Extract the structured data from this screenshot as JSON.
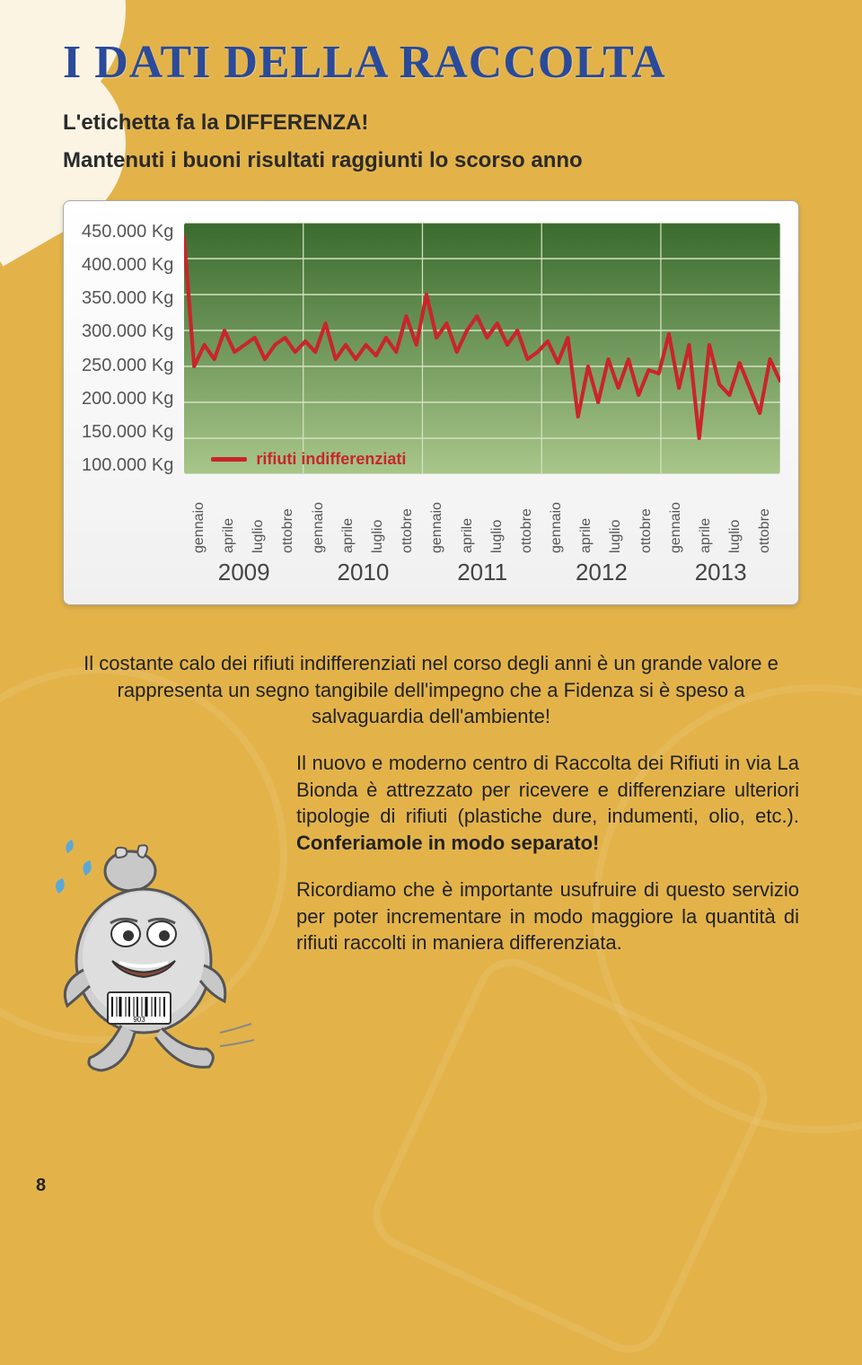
{
  "page": {
    "title": "I DATI DELLA RACCOLTA",
    "subtitle1": "L'etichetta fa la DIFFERENZA!",
    "subtitle2": "Mantenuti i buoni risultati raggiunti lo scorso anno",
    "page_number": "8"
  },
  "chart": {
    "type": "line",
    "background_gradient_top": "#3a6b2e",
    "background_gradient_bottom": "#a8c68a",
    "grid_color": "#d4e2c0",
    "line_color": "#c9252b",
    "line_width": 4,
    "legend_label": "rifiuti indifferenziati",
    "legend_color": "#c9252b",
    "ylim": [
      100000,
      450000
    ],
    "y_ticks": [
      "450.000 Kg",
      "400.000 Kg",
      "350.000 Kg",
      "300.000 Kg",
      "250.000 Kg",
      "200.000 Kg",
      "150.000 Kg",
      "100.000 Kg"
    ],
    "months": [
      "gennaio",
      "aprile",
      "luglio",
      "ottobre"
    ],
    "years": [
      "2009",
      "2010",
      "2011",
      "2012",
      "2013"
    ],
    "values": [
      430000,
      250000,
      280000,
      260000,
      300000,
      270000,
      280000,
      290000,
      260000,
      280000,
      290000,
      270000,
      285000,
      270000,
      310000,
      260000,
      280000,
      260000,
      280000,
      265000,
      290000,
      270000,
      320000,
      280000,
      350000,
      290000,
      310000,
      270000,
      300000,
      320000,
      290000,
      310000,
      280000,
      300000,
      260000,
      270000,
      285000,
      255000,
      290000,
      180000,
      250000,
      200000,
      260000,
      220000,
      260000,
      210000,
      245000,
      240000,
      295000,
      220000,
      280000,
      150000,
      280000,
      225000,
      210000,
      255000,
      220000,
      185000,
      260000,
      230000
    ]
  },
  "body": {
    "para1": "Il costante calo dei rifiuti indifferenziati nel corso degli anni è un grande valore e rappresenta un segno tangibile dell'impegno che a Fidenza si è speso a salvaguardia dell'ambiente!",
    "para2_a": "Il nuovo e moderno centro di Raccolta dei Rifiuti in via La Bionda è attrezzato per ricevere e differenziare ulteriori tipologie di rifiuti (plastiche dure, indumenti, olio, etc.). ",
    "para2_b": "Conferiamole in modo separato!",
    "para3": "Ricordiamo che è importante usufruire di questo servizio per poter incrementare in modo maggiore la quantità di rifiuti raccolti in maniera differenziata."
  },
  "colors": {
    "page_bg": "#e3b34a",
    "petal": "#fbf4e3",
    "title": "#2a4a9a"
  }
}
